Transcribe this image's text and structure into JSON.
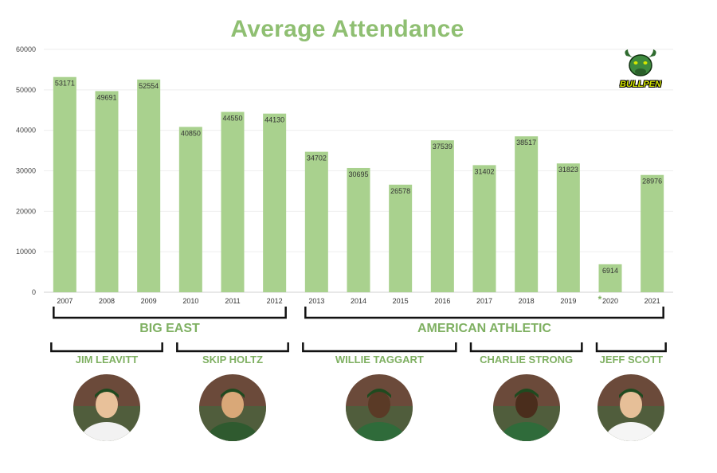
{
  "chart_data": {
    "type": "bar",
    "title": "Average Attendance",
    "categories": [
      "2007",
      "2008",
      "2009",
      "2010",
      "2011",
      "2012",
      "2013",
      "2014",
      "2015",
      "2016",
      "2017",
      "2018",
      "2019",
      "*2020",
      "2021"
    ],
    "values": [
      53171,
      49691,
      52554,
      40850,
      44550,
      44130,
      34702,
      30695,
      26578,
      37539,
      31402,
      38517,
      31823,
      6914,
      28976
    ],
    "data_labels": [
      "53171",
      "49691",
      "52554",
      "40850",
      "44550",
      "44130",
      "34702",
      "30695",
      "26578",
      "37539",
      "31402",
      "38517",
      "31823",
      "6914",
      "28976"
    ],
    "ylim": [
      0,
      60000
    ],
    "yticks": [
      "0",
      "10000",
      "20000",
      "30000",
      "40000",
      "50000",
      "60000"
    ],
    "ytick_values": [
      0,
      10000,
      20000,
      30000,
      40000,
      50000,
      60000
    ],
    "xlabel": "",
    "ylabel": "",
    "grid": true,
    "bar_color": "#a9d18e"
  },
  "conferences": [
    {
      "name": "BIG EAST",
      "start": 0,
      "end": 5
    },
    {
      "name": "AMERICAN ATHLETIC",
      "start": 6,
      "end": 14
    }
  ],
  "coaches": [
    {
      "name": "JIM LEAVITT",
      "start": 0,
      "end": 2,
      "icon": "coach-photo-icon"
    },
    {
      "name": "SKIP HOLTZ",
      "start": 3,
      "end": 5,
      "icon": "coach-photo-icon"
    },
    {
      "name": "WILLIE TAGGART",
      "start": 6,
      "end": 9,
      "icon": "coach-photo-icon"
    },
    {
      "name": "CHARLIE STRONG",
      "start": 10,
      "end": 12,
      "icon": "coach-photo-icon"
    },
    {
      "name": "JEFF SCOTT",
      "start": 13,
      "end": 14,
      "icon": "coach-photo-icon"
    }
  ],
  "logo": {
    "text": "BULLPEN",
    "icon": "bull-logo-icon"
  },
  "colors": {
    "accent": "#8fbf72",
    "bracket": "#111111",
    "label": "#7fb062",
    "logo_text": "#d5e600"
  }
}
